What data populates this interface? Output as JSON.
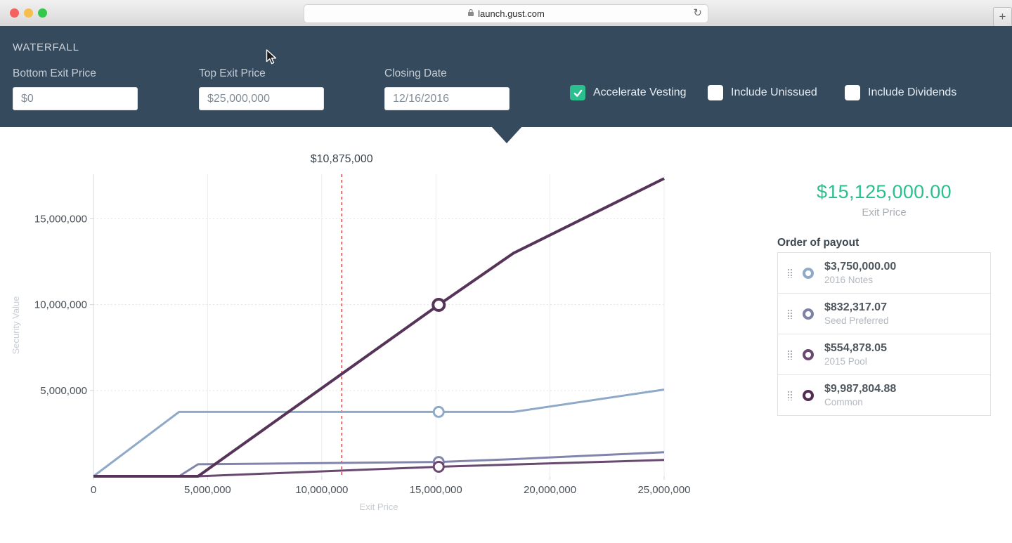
{
  "browser": {
    "url": "launch.gust.com",
    "reload_glyph": "↻",
    "new_tab_label": "+"
  },
  "header": {
    "title": "WATERFALL",
    "fields": [
      {
        "label": "Bottom Exit Price",
        "value": "$0"
      },
      {
        "label": "Top Exit Price",
        "value": "$25,000,000"
      },
      {
        "label": "Closing Date",
        "value": "12/16/2016"
      }
    ],
    "checkboxes": [
      {
        "label": "Accelerate Vesting",
        "checked": true
      },
      {
        "label": "Include Unissued",
        "checked": false
      },
      {
        "label": "Include Dividends",
        "checked": false
      }
    ]
  },
  "chart_data": {
    "type": "line",
    "xlabel": "Exit Price",
    "ylabel": "Security Value",
    "xlim": [
      0,
      25000000
    ],
    "ylim": [
      0,
      17600000
    ],
    "x_ticks": [
      0,
      5000000,
      10000000,
      15000000,
      20000000,
      25000000
    ],
    "y_ticks": [
      5000000,
      10000000,
      15000000
    ],
    "grid": true,
    "legend": "none",
    "cursor_line": {
      "x": 10875000,
      "label": "$10,875,000",
      "color": "#e23b3b"
    },
    "marker_x": 15125000,
    "series": [
      {
        "name": "2016 Notes",
        "color": "#8fa9c9",
        "width": 3,
        "points": [
          [
            0,
            0
          ],
          [
            3750000,
            3750000
          ],
          [
            18400000,
            3750000
          ],
          [
            25000000,
            5050000
          ]
        ],
        "marker_y": 3750000
      },
      {
        "name": "Seed Preferred",
        "color": "#8285ab",
        "width": 3,
        "points": [
          [
            0,
            0
          ],
          [
            3750000,
            0
          ],
          [
            4582317,
            700000
          ],
          [
            15125000,
            832317
          ],
          [
            18400000,
            1000000
          ],
          [
            25000000,
            1400000
          ]
        ],
        "marker_y": 832317
      },
      {
        "name": "2015 Pool",
        "color": "#6a4970",
        "width": 3,
        "points": [
          [
            0,
            0
          ],
          [
            4582317,
            0
          ],
          [
            15125000,
            554878
          ],
          [
            25000000,
            950000
          ]
        ],
        "marker_y": 554878
      },
      {
        "name": "Common",
        "color": "#563459",
        "width": 4,
        "points": [
          [
            0,
            0
          ],
          [
            4582317,
            0
          ],
          [
            15125000,
            9987805
          ],
          [
            18400000,
            13000000
          ],
          [
            25000000,
            17350000
          ]
        ],
        "marker_y": 9987805
      }
    ]
  },
  "panel": {
    "exit_price": "$15,125,000.00",
    "exit_price_label": "Exit Price",
    "payout_title": "Order of payout",
    "payouts": [
      {
        "amount": "$3,750,000.00",
        "name": "2016 Notes",
        "color": "#8fa9c9"
      },
      {
        "amount": "$832,317.07",
        "name": "Seed Preferred",
        "color": "#7e81a6"
      },
      {
        "amount": "$554,878.05",
        "name": "2015 Pool",
        "color": "#6a4970"
      },
      {
        "amount": "$9,987,804.88",
        "name": "Common",
        "color": "#532c52"
      }
    ]
  },
  "colors": {
    "header_bg": "#364a5e",
    "accent_teal": "#2bbf90",
    "cursor_red": "#e23b3b",
    "traffic_close": "#f5615d",
    "traffic_minimize": "#f6be4f",
    "traffic_zoom": "#34c749"
  }
}
